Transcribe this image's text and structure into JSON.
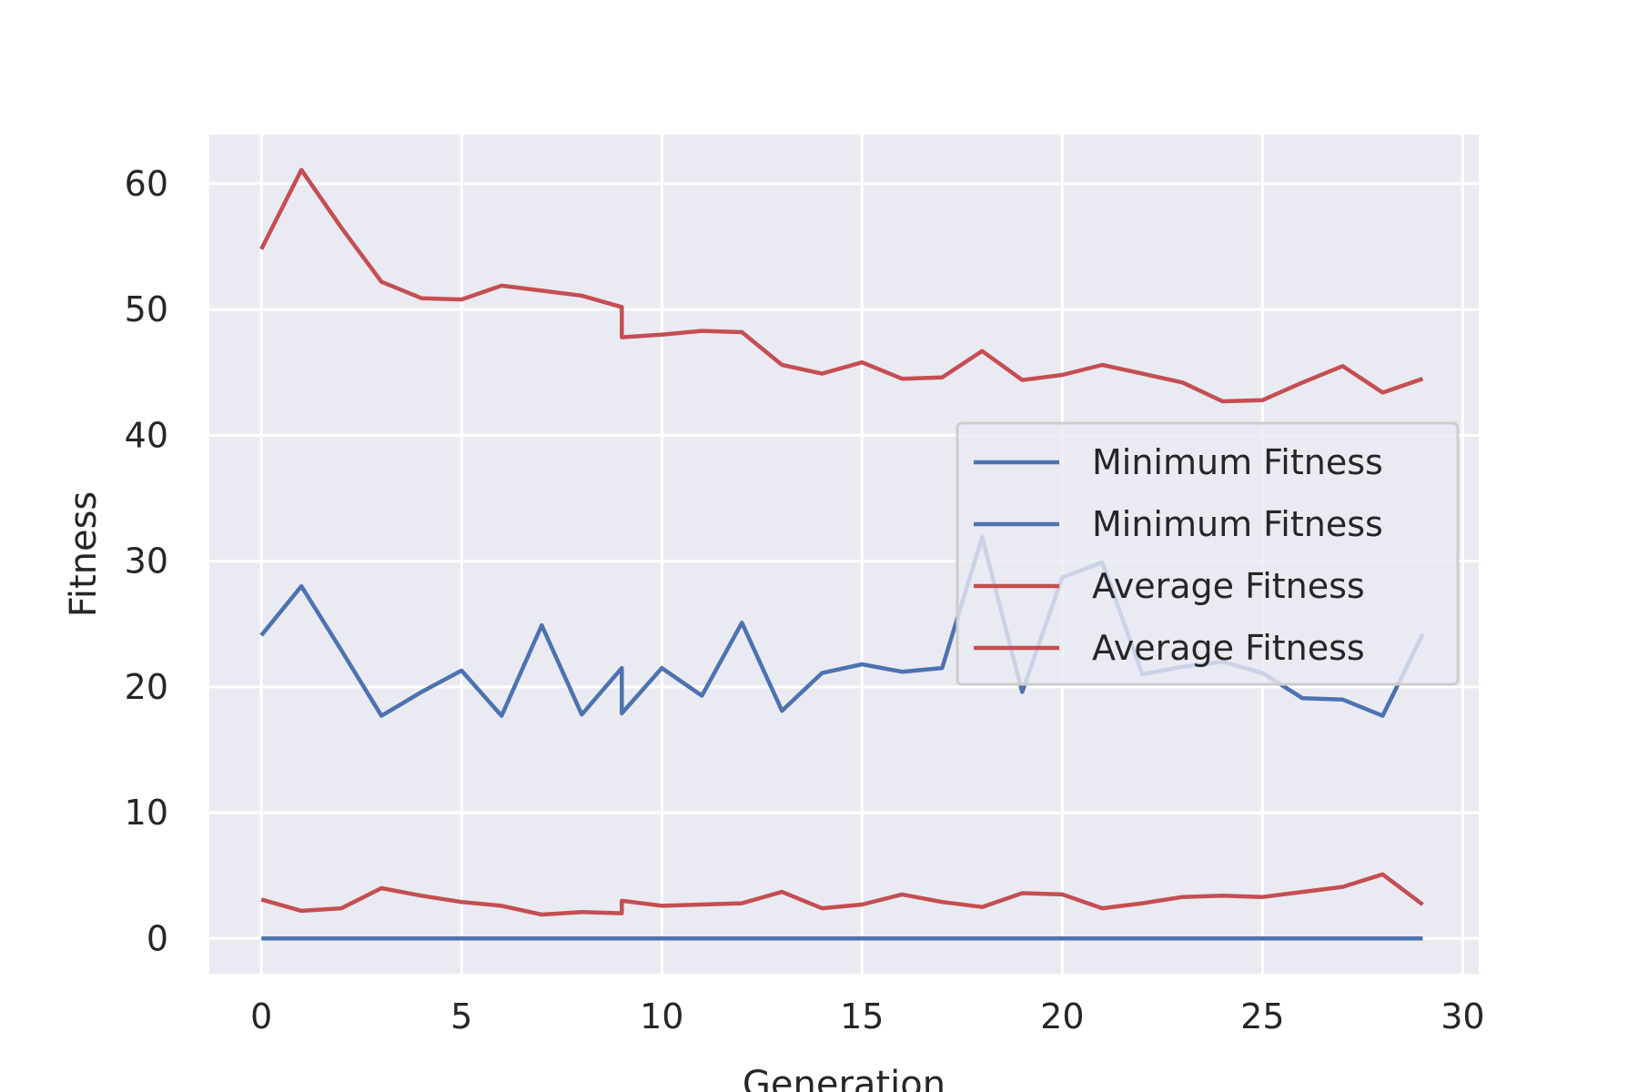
{
  "chart_data": {
    "type": "line",
    "title": "",
    "xlabel": "Generation",
    "ylabel": "Fitness",
    "ylabel_color": "#4C72B0",
    "xlim": [
      -1.3,
      30.4
    ],
    "ylim": [
      -2.8,
      63.9
    ],
    "xticks": [
      0,
      5,
      10,
      15,
      20,
      25,
      30
    ],
    "yticks": [
      0,
      10,
      20,
      30,
      40,
      50,
      60
    ],
    "grid": true,
    "background": "#EAEAF2",
    "legend_position": "center-right",
    "series": [
      {
        "name": "Minimum Fitness",
        "color": "#4C72B0",
        "x": [
          0,
          1,
          2,
          3,
          4,
          5,
          6,
          7,
          8,
          9,
          10,
          11,
          12,
          13,
          14,
          15,
          16,
          17,
          18,
          19,
          20,
          21,
          22,
          23,
          24,
          25,
          26,
          27,
          28,
          29
        ],
        "y": [
          0,
          0,
          0,
          0,
          0,
          0,
          0,
          0,
          0,
          0,
          0,
          0,
          0,
          0,
          0,
          0,
          0,
          0,
          0,
          0,
          0,
          0,
          0,
          0,
          0,
          0,
          0,
          0,
          0,
          0
        ]
      },
      {
        "name": "Minimum Fitness",
        "color": "#4C72B0",
        "x": [
          0,
          1,
          2,
          3,
          4,
          5,
          6,
          7,
          8,
          9,
          9,
          10,
          11,
          12,
          13,
          14,
          15,
          16,
          17,
          18,
          19,
          20,
          21,
          22,
          23,
          24,
          25,
          26,
          27,
          28,
          29
        ],
        "y": [
          24.1,
          28.0,
          22.9,
          17.7,
          19.6,
          21.3,
          17.7,
          24.9,
          17.8,
          21.5,
          17.9,
          21.5,
          19.3,
          25.1,
          18.1,
          21.1,
          21.8,
          21.2,
          21.5,
          31.9,
          19.6,
          28.7,
          29.9,
          21.0,
          21.6,
          22.0,
          21.1,
          19.1,
          19.0,
          17.7,
          24.2
        ]
      },
      {
        "name": "Average Fitness",
        "color": "#C44E52",
        "x": [
          0,
          1,
          2,
          3,
          4,
          5,
          6,
          7,
          8,
          9,
          9,
          10,
          11,
          12,
          13,
          14,
          15,
          16,
          17,
          18,
          19,
          20,
          21,
          22,
          23,
          24,
          25,
          26,
          27,
          28,
          29
        ],
        "y": [
          3.1,
          2.2,
          2.4,
          4.0,
          3.4,
          2.9,
          2.6,
          1.9,
          2.1,
          2.0,
          3.0,
          2.6,
          2.7,
          2.8,
          3.7,
          2.4,
          2.7,
          3.5,
          2.9,
          2.5,
          3.6,
          3.5,
          2.4,
          2.8,
          3.3,
          3.4,
          3.3,
          3.7,
          4.1,
          5.1,
          2.7
        ]
      },
      {
        "name": "Average Fitness",
        "color": "#C44E52",
        "x": [
          0,
          1,
          2,
          3,
          4,
          5,
          6,
          7,
          8,
          9,
          9,
          10,
          11,
          12,
          13,
          14,
          15,
          16,
          17,
          18,
          19,
          20,
          21,
          22,
          23,
          24,
          25,
          26,
          27,
          28,
          29
        ],
        "y": [
          54.8,
          61.1,
          56.5,
          52.2,
          50.9,
          50.8,
          51.9,
          51.5,
          51.1,
          50.2,
          47.8,
          48.0,
          48.3,
          48.2,
          45.6,
          44.9,
          45.8,
          44.5,
          44.6,
          46.7,
          44.4,
          44.8,
          45.6,
          44.9,
          44.2,
          42.7,
          42.8,
          44.2,
          45.5,
          43.4,
          44.5
        ]
      }
    ]
  }
}
